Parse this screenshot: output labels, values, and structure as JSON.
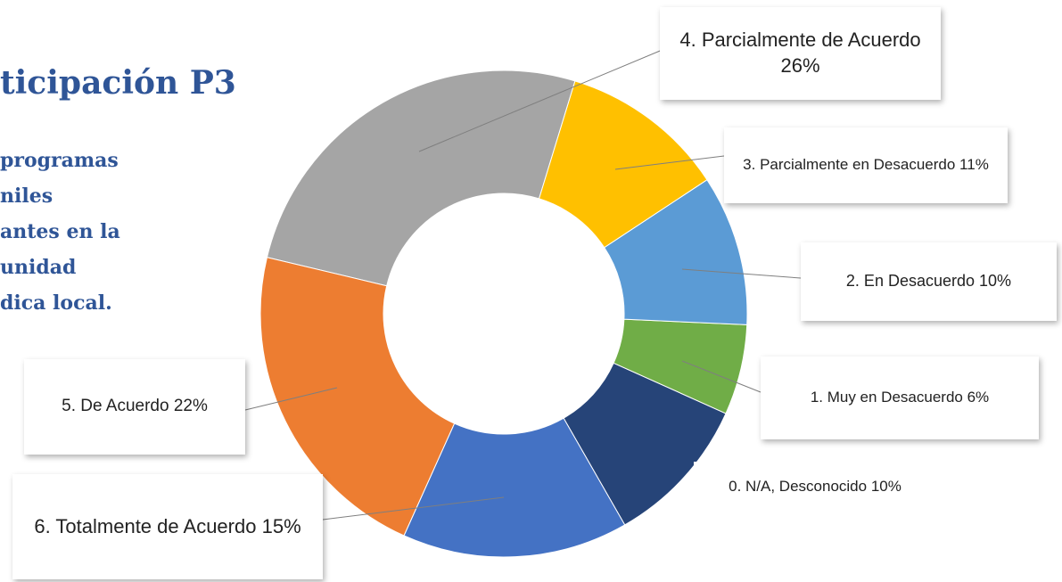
{
  "chart_data": {
    "type": "donut",
    "title": "ticipación P3",
    "subtitle": [
      "programas",
      "niles",
      "antes en la",
      "unidad",
      "dica local."
    ],
    "categories": [
      "0. N/A, Desconocido",
      "1. Muy en Desacuerdo",
      "2. En Desacuerdo",
      "3. Parcialmente en Desacuerdo",
      "4. Parcialmente de Acuerdo",
      "5. De Acuerdo",
      "6. Totalmente de Acuerdo"
    ],
    "values": [
      10,
      6,
      10,
      11,
      26,
      22,
      15
    ],
    "value_labels": [
      "10%",
      "6%",
      "10%",
      "11%",
      "26%",
      "22%",
      "15%"
    ],
    "colors": [
      "#264478",
      "#70ad47",
      "#5b9bd5",
      "#ffc000",
      "#a5a5a5",
      "#ed7d31",
      "#4472c4"
    ]
  }
}
